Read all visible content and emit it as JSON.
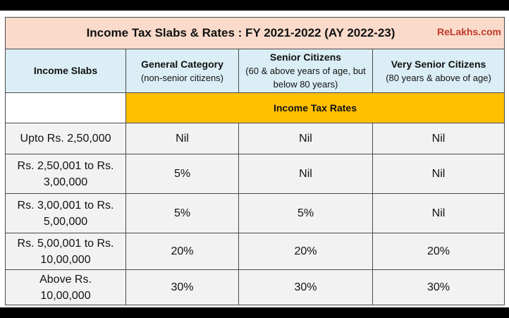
{
  "title": "Income Tax Slabs & Rates : FY 2021-2022 (AY 2022-23)",
  "brand": "ReLakhs.com",
  "header": {
    "slabs": "Income Slabs",
    "general": {
      "title": "General Category",
      "sub": "(non-senior citizens)"
    },
    "senior": {
      "title": "Senior Citizens",
      "sub": "(60 & above years of age, but below 80 years)"
    },
    "very_senior": {
      "title": "Very Senior Citizens",
      "sub": "(80 years & above of age)"
    }
  },
  "rates_label": "Income Tax Rates",
  "rows": [
    {
      "slab": "Upto Rs. 2,50,000",
      "general": "Nil",
      "senior": "Nil",
      "very_senior": "Nil"
    },
    {
      "slab": "Rs. 2,50,001 to Rs. 3,00,000",
      "general": "5%",
      "senior": "Nil",
      "very_senior": "Nil"
    },
    {
      "slab": "Rs. 3,00,001 to Rs. 5,00,000",
      "general": "5%",
      "senior": "5%",
      "very_senior": "Nil"
    },
    {
      "slab": "Rs. 5,00,001 to Rs. 10,00,000",
      "general": "20%",
      "senior": "20%",
      "very_senior": "20%"
    },
    {
      "slab": "Above Rs. 10,00,000",
      "general": "30%",
      "senior": "30%",
      "very_senior": "30%"
    }
  ]
}
